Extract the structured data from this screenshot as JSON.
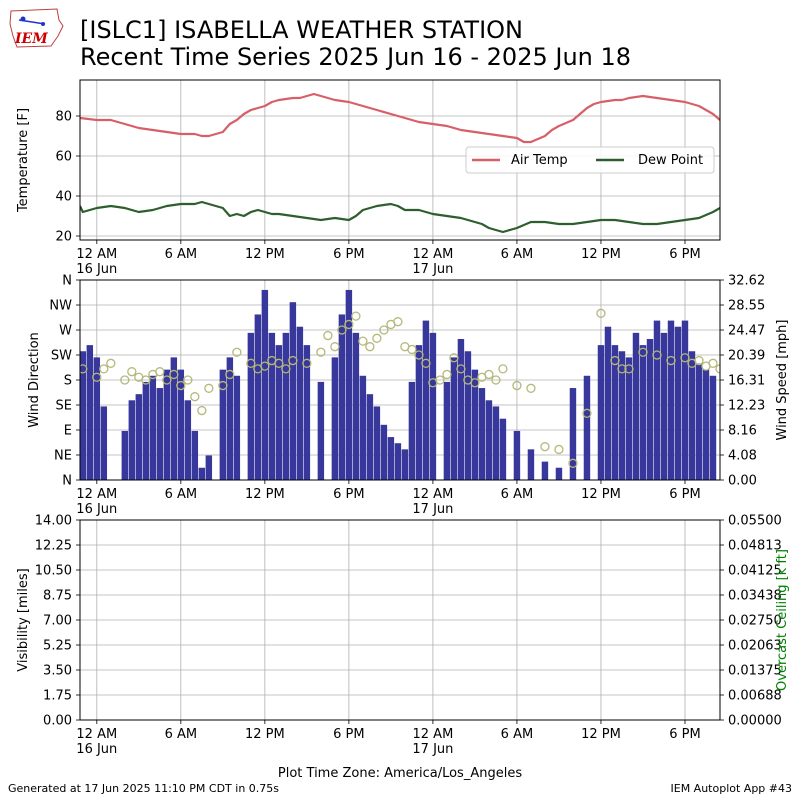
{
  "header": {
    "title_line1": "[ISLC1] ISABELLA WEATHER STATION",
    "title_line2": "Recent Time Series 2025 Jun 16 - 2025 Jun 18"
  },
  "logo": {
    "text": "IEM",
    "color": "#cc0000"
  },
  "footer": {
    "left": "Generated at 17 Jun 2025 11:10 PM CDT in 0.75s",
    "right": "IEM Autoplot App #43"
  },
  "colors": {
    "air_temp": "#d75f68",
    "dew_point": "#2e5e2e",
    "wind_speed": "#38389c",
    "wind_dir": "#b5b878",
    "ceiling_label": "#008000"
  },
  "chart_data": [
    {
      "type": "line",
      "x_range_hours": [
        -1.2,
        44.5
      ],
      "x_ticks": [
        0,
        6,
        12,
        18,
        24,
        30,
        36,
        42
      ],
      "x_tick_labels": [
        "12 AM",
        "6 AM",
        "12 PM",
        "6 PM",
        "12 AM",
        "6 AM",
        "12 PM",
        "6 PM"
      ],
      "x_day_labels": {
        "0": "16 Jun",
        "24": "17 Jun"
      },
      "ylabel": "Temperature [F]",
      "ylim": [
        18,
        98
      ],
      "y_ticks": [
        20,
        40,
        60,
        80
      ],
      "grid": true,
      "legend_position": "center-right",
      "series": [
        {
          "name": "Air Temp",
          "x": [
            -1.2,
            0,
            1,
            1.5,
            2,
            2.5,
            3,
            4,
            5,
            6,
            7,
            7.5,
            8,
            9,
            9.5,
            10,
            10.5,
            11,
            11.5,
            12,
            12.5,
            13,
            14,
            14.5,
            15,
            15.5,
            16,
            17,
            18,
            19,
            20,
            21,
            22,
            23,
            24,
            25,
            26,
            27,
            28,
            29,
            30,
            30.5,
            31,
            32,
            32.5,
            33,
            34,
            34.5,
            35,
            35.5,
            36,
            37,
            37.5,
            38,
            39,
            40,
            41,
            42,
            43,
            44,
            44.5
          ],
          "y": [
            79,
            78,
            78,
            77,
            76,
            75,
            74,
            73,
            72,
            71,
            71,
            70,
            70,
            72,
            76,
            78,
            81,
            83,
            84,
            85,
            87,
            88,
            89,
            89,
            90,
            91,
            90,
            88,
            87,
            85,
            83,
            81,
            79,
            77,
            76,
            75,
            73,
            72,
            71,
            70,
            69,
            67,
            67,
            70,
            73,
            75,
            78,
            81,
            84,
            86,
            87,
            88,
            88,
            89,
            90,
            89,
            88,
            87,
            85,
            81,
            78
          ]
        },
        {
          "name": "Dew Point",
          "x": [
            -1.2,
            -1,
            -0.5,
            0,
            1,
            2,
            3,
            4,
            5,
            6,
            7,
            7.5,
            8,
            9,
            9.5,
            10,
            10.5,
            11,
            11.5,
            12,
            12.5,
            13,
            14,
            15,
            16,
            17,
            18,
            18.5,
            19,
            20,
            21,
            21.5,
            22,
            23,
            24,
            25,
            26,
            27,
            27.5,
            28,
            28.5,
            29,
            30,
            31,
            32,
            33,
            34,
            35,
            36,
            37,
            38,
            39,
            40,
            41,
            42,
            43,
            44,
            44.5
          ],
          "y": [
            35,
            32,
            33,
            34,
            35,
            34,
            32,
            33,
            35,
            36,
            36,
            37,
            36,
            34,
            30,
            31,
            30,
            32,
            33,
            32,
            31,
            31,
            30,
            29,
            28,
            29,
            28,
            30,
            33,
            35,
            36,
            35,
            33,
            33,
            31,
            30,
            29,
            27,
            26,
            24,
            23,
            22,
            24,
            27,
            27,
            26,
            26,
            27,
            28,
            28,
            27,
            26,
            26,
            27,
            28,
            29,
            32,
            34
          ]
        }
      ]
    },
    {
      "type": "bar",
      "ylabel": "Wind Direction",
      "y_ticks_left": [
        0,
        45,
        90,
        135,
        180,
        225,
        270,
        315,
        360
      ],
      "y_tick_labels_left": [
        "N",
        "NE",
        "E",
        "SE",
        "S",
        "SW",
        "W",
        "NW",
        "N"
      ],
      "ylim_left": [
        0,
        360
      ],
      "ylabel_right": "Wind Speed [mph]",
      "ylim_right": [
        0,
        32.62
      ],
      "y_ticks_right": [
        0,
        4.08,
        8.16,
        12.23,
        16.31,
        20.39,
        24.47,
        28.55,
        32.62
      ],
      "y_tick_labels_right": [
        "0.00",
        "4.08",
        "8.16",
        "12.23",
        "16.31",
        "20.39",
        "24.47",
        "28.55",
        "32.62"
      ],
      "grid": true,
      "series": [
        {
          "name": "Wind Speed",
          "x": [
            -1,
            -0.5,
            0,
            0.5,
            1,
            2,
            2.5,
            3,
            3.5,
            4,
            4.5,
            5,
            5.5,
            6,
            6.5,
            7,
            7.5,
            8,
            8.5,
            9,
            9.5,
            10,
            10.5,
            11,
            11.5,
            12,
            12.5,
            13,
            13.5,
            14,
            14.5,
            15,
            16,
            17,
            17.5,
            18,
            18.5,
            19,
            19.5,
            20,
            20.5,
            21,
            21.5,
            22,
            22.5,
            23,
            23.5,
            24,
            25,
            25.5,
            26,
            26.5,
            27,
            27.5,
            28,
            28.5,
            29,
            30,
            31,
            32,
            33,
            34,
            35,
            36,
            36.5,
            37,
            37.5,
            38,
            38.5,
            39,
            39.5,
            40,
            40.5,
            41,
            41.5,
            42,
            42.5,
            43,
            43.5,
            44
          ],
          "y": [
            21,
            22,
            20,
            12,
            0,
            8,
            13,
            14,
            16,
            17,
            15,
            18,
            20,
            18,
            13,
            8,
            2,
            4,
            0,
            18,
            20,
            17,
            0,
            24,
            27,
            31,
            24,
            22,
            24,
            29,
            25,
            22,
            16,
            20,
            27,
            31,
            24,
            17,
            14,
            12,
            9,
            7,
            6,
            5,
            16,
            22,
            26,
            24,
            16,
            20,
            23,
            21,
            18,
            15,
            13,
            12,
            10,
            8,
            5,
            3,
            2,
            15,
            17,
            22,
            25,
            22,
            21,
            20,
            24,
            22,
            23,
            26,
            24,
            26,
            25,
            26,
            21,
            19,
            18,
            17
          ]
        },
        {
          "name": "Wind Direction",
          "x": [
            -1,
            0,
            0.5,
            1,
            2,
            2.5,
            3,
            3.5,
            4,
            4.5,
            5,
            5.5,
            6,
            6.5,
            7,
            7.5,
            8,
            9,
            9.5,
            10,
            11,
            11.5,
            12,
            12.5,
            13,
            13.5,
            14,
            15,
            16,
            16.5,
            17,
            17.5,
            18,
            18.5,
            19,
            19.5,
            20,
            20.5,
            21,
            21.5,
            22,
            22.5,
            23,
            23.5,
            24,
            24.5,
            25,
            25.5,
            26,
            26.5,
            27,
            27.5,
            28,
            28.5,
            29,
            30,
            31,
            32,
            33,
            34,
            35,
            36,
            37,
            37.5,
            38,
            39,
            40,
            41,
            42,
            42.5,
            43,
            43.5,
            44,
            44.5
          ],
          "y": [
            200,
            185,
            200,
            210,
            180,
            195,
            185,
            180,
            190,
            195,
            180,
            190,
            170,
            180,
            150,
            125,
            165,
            170,
            190,
            230,
            210,
            200,
            205,
            215,
            210,
            200,
            215,
            210,
            230,
            260,
            240,
            270,
            280,
            295,
            250,
            240,
            255,
            270,
            280,
            285,
            240,
            235,
            225,
            210,
            175,
            180,
            190,
            220,
            200,
            180,
            175,
            185,
            190,
            180,
            200,
            170,
            165,
            60,
            55,
            30,
            120,
            300,
            215,
            200,
            200,
            230,
            225,
            215,
            220,
            210,
            215,
            205,
            210,
            200
          ]
        }
      ]
    },
    {
      "type": "line",
      "ylabel": "Visibility [miles]",
      "ylim": [
        0,
        14
      ],
      "y_ticks": [
        0,
        1.75,
        3.5,
        5.25,
        7,
        8.75,
        10.5,
        12.25,
        14
      ],
      "y_tick_labels": [
        "0.00",
        "1.75",
        "3.50",
        "5.25",
        "7.00",
        "8.75",
        "10.50",
        "12.25",
        "14.00"
      ],
      "ylabel_right": "Overcast Ceiling [k ft]",
      "ylim_right": [
        0,
        0.055
      ],
      "y_tick_labels_right": [
        "0.00000",
        "0.00688",
        "0.01375",
        "0.02063",
        "0.02750",
        "0.03438",
        "0.04125",
        "0.04813",
        "0.05500"
      ],
      "grid": true,
      "xlabel": "Plot Time Zone: America/Los_Angeles",
      "series": []
    }
  ]
}
